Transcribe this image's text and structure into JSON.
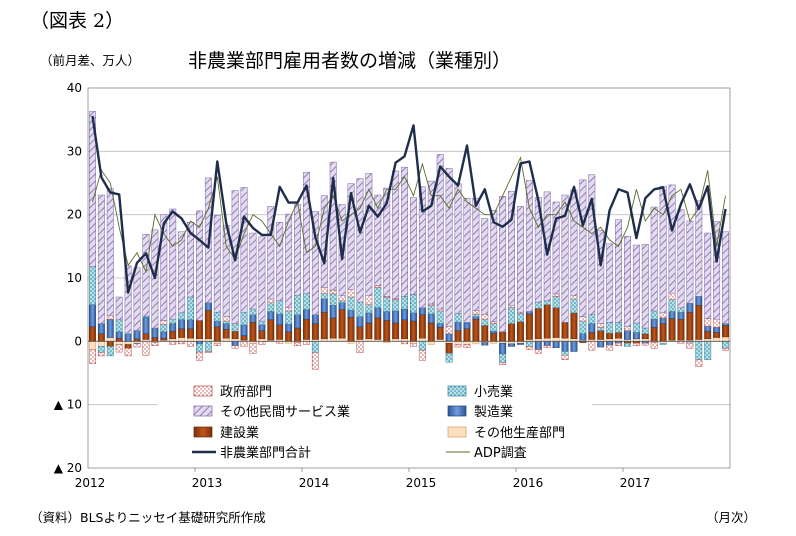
{
  "figure_label": "（図表 2）",
  "unit_label": "（前月差、万人）",
  "source": "（資料）BLSよりニッセイ基礎研究所作成",
  "x_unit_label": "（月次）",
  "colors": {
    "government": "#c0504d",
    "retail": "#4bacc6",
    "other_services": "#8064a2",
    "manufacturing": "#4472c4",
    "construction": "#a0420f",
    "other_production": "#f5c89a",
    "total": "#1f2d4d",
    "adp": "#5a6b2a"
  },
  "chart_data": {
    "type": "bar",
    "title": "非農業部門雇用者数の増減（業種別）",
    "ylim": [
      -20,
      40
    ],
    "y_ticks": [
      {
        "value": 40,
        "label": "40"
      },
      {
        "value": 30,
        "label": "30"
      },
      {
        "value": 20,
        "label": "20"
      },
      {
        "value": 10,
        "label": "10"
      },
      {
        "value": 0,
        "label": "0"
      },
      {
        "value": -10,
        "label": "▲ 10"
      },
      {
        "value": -20,
        "label": "▲ 20"
      }
    ],
    "x_year_labels": [
      "2012",
      "2013",
      "2014",
      "2015",
      "2016",
      "2017"
    ],
    "start": "2012-01",
    "legend": [
      {
        "key": "government",
        "label": "政府部門"
      },
      {
        "key": "retail",
        "label": "小売業"
      },
      {
        "key": "other_services",
        "label": "その他民間サービス業"
      },
      {
        "key": "manufacturing",
        "label": "製造業"
      },
      {
        "key": "construction",
        "label": "建設業"
      },
      {
        "key": "other_production",
        "label": "その他生産部門"
      },
      {
        "key": "total",
        "label": "非農業部門合計"
      },
      {
        "key": "adp",
        "label": "ADP調査"
      }
    ],
    "series": {
      "other_production": [
        -1.3,
        -0.8,
        0.6,
        -0.5,
        -0.5,
        -0.3,
        0.3,
        -0.2,
        0.2,
        0.4,
        0.6,
        0.5,
        0.4,
        0.4,
        -0.3,
        0.5,
        0.4,
        0.2,
        -0.3,
        0.4,
        0.2,
        0.3,
        -0.3,
        -0.2,
        0.3,
        0.3,
        0.4,
        0.5,
        0.5,
        -0.3,
        0.3,
        0.4,
        0.3,
        -0.2,
        0.4,
        0.4,
        -0.3,
        0.5,
        -0.5,
        0.3,
        -0.3,
        -0.5,
        -0.5,
        -0.4,
        -0.2,
        -0.3,
        -0.3,
        -0.4,
        -0.3,
        0.3,
        0.4,
        0.5,
        0.6,
        0.5,
        0.4,
        0.2,
        0.3,
        0.3,
        0.4,
        0.5,
        0.3,
        0.4,
        0.4,
        -0.2,
        -0.3,
        0.2,
        0.2,
        0.2,
        0.3,
        0.4,
        0.6,
        0.7
      ],
      "construction": [
        2.3,
        1.2,
        -0.8,
        0.5,
        -0.6,
        0.4,
        0.9,
        0.6,
        0.3,
        1.2,
        1.4,
        1.5,
        2.9,
        4.5,
        2.3,
        1.4,
        1.2,
        0.7,
        3.0,
        1.3,
        3.2,
        2.3,
        1.5,
        2.1,
        3.2,
        2.5,
        4.2,
        3.2,
        4.5,
        3.8,
        2.0,
        2.5,
        3.4,
        3.3,
        2.5,
        3.0,
        3.2,
        3.7,
        2.9,
        1.9,
        -1.6,
        1.7,
        2.0,
        3.5,
        2.5,
        1.3,
        1.5,
        2.8,
        3.1,
        4.0,
        4.8,
        5.3,
        4.7,
        2.5,
        4.1,
        -0.2,
        1.1,
        1.4,
        0.9,
        0.9,
        -0.3,
        -0.3,
        0.8,
        2.2,
        2.8,
        3.4,
        3.3,
        4.4,
        5.4,
        1.2,
        0.8,
        1.8
      ],
      "manufacturing": [
        3.5,
        1.6,
        2.9,
        1.0,
        1.1,
        1.3,
        2.6,
        1.5,
        1.0,
        1.2,
        1.4,
        1.4,
        -0.4,
        1.2,
        0.9,
        0.9,
        -0.7,
        1.7,
        1.2,
        0.9,
        1.3,
        1.7,
        1.2,
        2.1,
        1.5,
        1.4,
        2.1,
        2.0,
        1.1,
        1.1,
        1.6,
        1.6,
        1.6,
        1.4,
        1.9,
        1.7,
        1.3,
        1.1,
        1.4,
        0.6,
        1.2,
        1.3,
        0.9,
        0.4,
        -0.4,
        0.3,
        -1.7,
        -0.4,
        -0.2,
        0.4,
        -1.3,
        -0.7,
        -1.0,
        -1.6,
        -1.6,
        1.0,
        1.4,
        -0.9,
        -0.6,
        -0.3,
        1.4,
        1.0,
        -0.3,
        1.3,
        0.9,
        1.1,
        1.1,
        1.4,
        1.4,
        0.8,
        0.8,
        0.3
      ],
      "retail": [
        6.0,
        -1.0,
        -1.5,
        1.9,
        0.2,
        -0.1,
        0.2,
        0.0,
        1.2,
        0.7,
        1.1,
        3.6,
        -1.3,
        -1.6,
        1.4,
        0.4,
        1.2,
        2.0,
        0.9,
        0.6,
        1.4,
        2.1,
        2.1,
        3.1,
        2.6,
        -1.8,
        0.9,
        1.8,
        0.3,
        2.1,
        2.3,
        1.3,
        3.2,
        2.2,
        1.8,
        2.0,
        2.9,
        -1.4,
        1.4,
        2.0,
        -1.4,
        1.4,
        0.1,
        0.4,
        1.0,
        1.2,
        -1.4,
        2.6,
        1.3,
        -0.8,
        1.0,
        0.6,
        1.8,
        -0.6,
        2.2,
        2.0,
        1.4,
        0.5,
        1.7,
        1.6,
        -0.5,
        1.5,
        0.9,
        1.3,
        -0.2,
        1.9,
        0.7,
        -0.3,
        -2.9,
        -2.9,
        0.0,
        -1.1
      ],
      "government": [
        -2.2,
        -0.5,
        0.6,
        -1.2,
        -1.2,
        -0.5,
        -2.2,
        -0.5,
        0.6,
        -0.5,
        -0.4,
        -0.8,
        -1.3,
        -0.2,
        -0.4,
        0.7,
        -0.4,
        -0.8,
        -1.6,
        -0.5,
        0.6,
        -0.3,
        0.5,
        -0.5,
        -0.5,
        -2.6,
        0.9,
        0.6,
        0.8,
        1.2,
        -1.8,
        1.4,
        0.3,
        0.2,
        0.2,
        -0.4,
        -0.5,
        -1.6,
        0.2,
        0.3,
        1.2,
        -0.4,
        -0.5,
        0.6,
        0.8,
        0.3,
        -0.3,
        0.3,
        0.2,
        -0.5,
        -0.6,
        -0.3,
        0.4,
        -0.7,
        0.5,
        0.7,
        -1.4,
        0.6,
        -0.8,
        -0.4,
        0.6,
        -0.4,
        -0.3,
        -0.9,
        0.8,
        1.0,
        -0.3,
        -0.8,
        -1.1,
        1.2,
        1.3,
        -0.3
      ],
      "other_services": [
        24.5,
        20.3,
        20.0,
        3.6,
        10.6,
        9.9,
        12.9,
        15.5,
        16.7,
        17.4,
        12.8,
        11.8,
        17.3,
        19.7,
        15.3,
        14.4,
        21.0,
        19.7,
        12.0,
        13.3,
        14.6,
        12.4,
        14.8,
        14.3,
        19.1,
        16.3,
        14.5,
        20.2,
        14.4,
        16.7,
        19.5,
        19.3,
        14.3,
        17.1,
        20.1,
        20.4,
        15.3,
        19.1,
        19.4,
        24.4,
        24.9,
        20.5,
        19.6,
        17.7,
        15.1,
        17.6,
        21.4,
        18.0,
        16.7,
        20.7,
        16.5,
        17.2,
        14.5,
        20.1,
        16.7,
        21.6,
        22.1,
        14.7,
        12.4,
        16.2,
        14.3,
        12.3,
        13.2,
        16.4,
        20.0,
        17.1,
        15.5,
        13.0,
        15.1,
        13.5,
        15.4,
        14.5
      ]
    },
    "total": [
      35.6,
      25.9,
      23.5,
      23.2,
      7.7,
      12.4,
      13.9,
      10.0,
      18.6,
      20.5,
      19.4,
      17.1,
      16.0,
      14.8,
      28.4,
      18.7,
      12.8,
      19.7,
      17.9,
      16.8,
      16.8,
      24.4,
      21.9,
      21.9,
      24.6,
      16.4,
      12.3,
      25.8,
      13.0,
      23.4,
      17.2,
      21.4,
      19.7,
      21.8,
      28.2,
      29.2,
      34.1,
      20.5,
      21.4,
      27.6,
      26.0,
      24.6,
      30.9,
      21.4,
      24.0,
      18.8,
      18.1,
      19.2,
      28.1,
      28.4,
      22.3,
      13.7,
      19.4,
      19.8,
      24.4,
      18.3,
      22.5,
      12.0,
      20.7,
      24.0,
      23.5,
      16.3,
      22.6,
      24.0,
      24.3,
      17.5,
      21.7,
      24.8,
      20.9,
      24.5,
      12.6,
      20.9
    ],
    "adp": [
      22.0,
      27.0,
      25.0,
      18.0,
      12.0,
      14.0,
      11.0,
      20.0,
      17.0,
      15.0,
      16.0,
      19.0,
      18.0,
      21.0,
      26.0,
      15.0,
      13.0,
      17.0,
      20.0,
      19.0,
      17.0,
      15.0,
      19.0,
      22.0,
      14.0,
      15.0,
      21.0,
      23.0,
      19.0,
      20.0,
      21.0,
      24.0,
      21.0,
      24.0,
      24.0,
      26.0,
      23.0,
      28.0,
      23.0,
      23.0,
      21.0,
      24.0,
      22.0,
      21.0,
      20.0,
      20.0,
      23.0,
      26.0,
      29.0,
      21.0,
      18.0,
      20.0,
      20.0,
      22.0,
      19.0,
      18.0,
      17.0,
      18.0,
      16.0,
      15.0,
      18.0,
      24.0,
      19.0,
      21.0,
      20.0,
      23.0,
      24.0,
      19.0,
      21.0,
      27.0,
      15.0,
      23.0
    ]
  }
}
